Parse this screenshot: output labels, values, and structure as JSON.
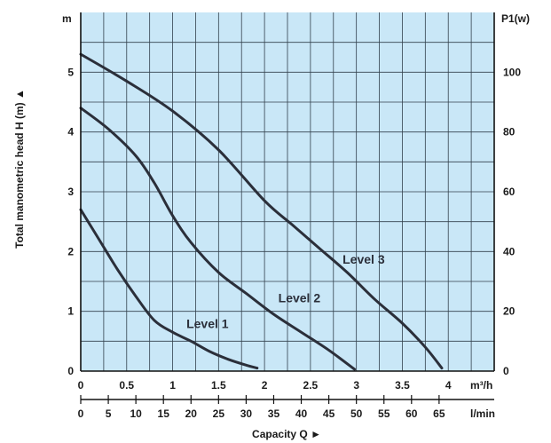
{
  "chart_data": {
    "type": "line",
    "ylabel": "Total manometric head H (m) ▲",
    "xlabel": "Capacity Q ►",
    "y_unit": "m",
    "y2_unit": "P1(w)",
    "x_unit": "m³/h",
    "x2_unit": "l/min",
    "xlim": [
      0,
      4.5
    ],
    "ylim": [
      0,
      6
    ],
    "y2lim": [
      0,
      120
    ],
    "grid": true,
    "x_ticks": [
      {
        "value": 0,
        "label": "0"
      },
      {
        "value": 0.5,
        "label": "0.5"
      },
      {
        "value": 1,
        "label": "1"
      },
      {
        "value": 1.5,
        "label": "1.5"
      },
      {
        "value": 2,
        "label": "2"
      },
      {
        "value": 2.5,
        "label": "2.5"
      },
      {
        "value": 3,
        "label": "3"
      },
      {
        "value": 3.5,
        "label": "3.5"
      },
      {
        "value": 4,
        "label": "4"
      }
    ],
    "x2_ticks": [
      {
        "value": 0,
        "label": "0"
      },
      {
        "value": 5,
        "label": "5"
      },
      {
        "value": 10,
        "label": "10"
      },
      {
        "value": 15,
        "label": "15"
      },
      {
        "value": 20,
        "label": "20"
      },
      {
        "value": 25,
        "label": "25"
      },
      {
        "value": 30,
        "label": "30"
      },
      {
        "value": 35,
        "label": "35"
      },
      {
        "value": 40,
        "label": "40"
      },
      {
        "value": 45,
        "label": "45"
      },
      {
        "value": 50,
        "label": "50"
      },
      {
        "value": 55,
        "label": "55"
      },
      {
        "value": 60,
        "label": "60"
      },
      {
        "value": 65,
        "label": "65"
      }
    ],
    "y_ticks": [
      {
        "value": 0,
        "label": "0"
      },
      {
        "value": 1,
        "label": "1"
      },
      {
        "value": 2,
        "label": "2"
      },
      {
        "value": 3,
        "label": "3"
      },
      {
        "value": 4,
        "label": "4"
      },
      {
        "value": 5,
        "label": "5"
      }
    ],
    "y2_ticks": [
      {
        "value": 0,
        "label": "0"
      },
      {
        "value": 20,
        "label": "20"
      },
      {
        "value": 40,
        "label": "40"
      },
      {
        "value": 60,
        "label": "60"
      },
      {
        "value": 80,
        "label": "80"
      },
      {
        "value": 100,
        "label": "100"
      }
    ],
    "series": [
      {
        "name": "Level 1",
        "label_at": [
          1.15,
          0.72
        ],
        "x": [
          0,
          0.2,
          0.4,
          0.6,
          0.8,
          1.0,
          1.2,
          1.4,
          1.6,
          1.8,
          1.92
        ],
        "y": [
          2.7,
          2.2,
          1.7,
          1.25,
          0.85,
          0.65,
          0.5,
          0.33,
          0.2,
          0.1,
          0.05
        ]
      },
      {
        "name": "Level 2",
        "label_at": [
          2.15,
          1.15
        ],
        "x": [
          0,
          0.3,
          0.6,
          0.8,
          1.0,
          1.2,
          1.5,
          1.8,
          2.1,
          2.4,
          2.7,
          2.98
        ],
        "y": [
          4.4,
          4.05,
          3.6,
          3.15,
          2.6,
          2.15,
          1.65,
          1.3,
          0.95,
          0.65,
          0.35,
          0.03
        ]
      },
      {
        "name": "Level 3",
        "label_at": [
          2.85,
          1.8
        ],
        "x": [
          0,
          0.5,
          1.0,
          1.5,
          2.0,
          2.3,
          2.6,
          2.9,
          3.2,
          3.5,
          3.75,
          3.93
        ],
        "y": [
          5.3,
          4.85,
          4.35,
          3.7,
          2.85,
          2.45,
          2.05,
          1.65,
          1.2,
          0.8,
          0.4,
          0.05
        ]
      }
    ]
  }
}
